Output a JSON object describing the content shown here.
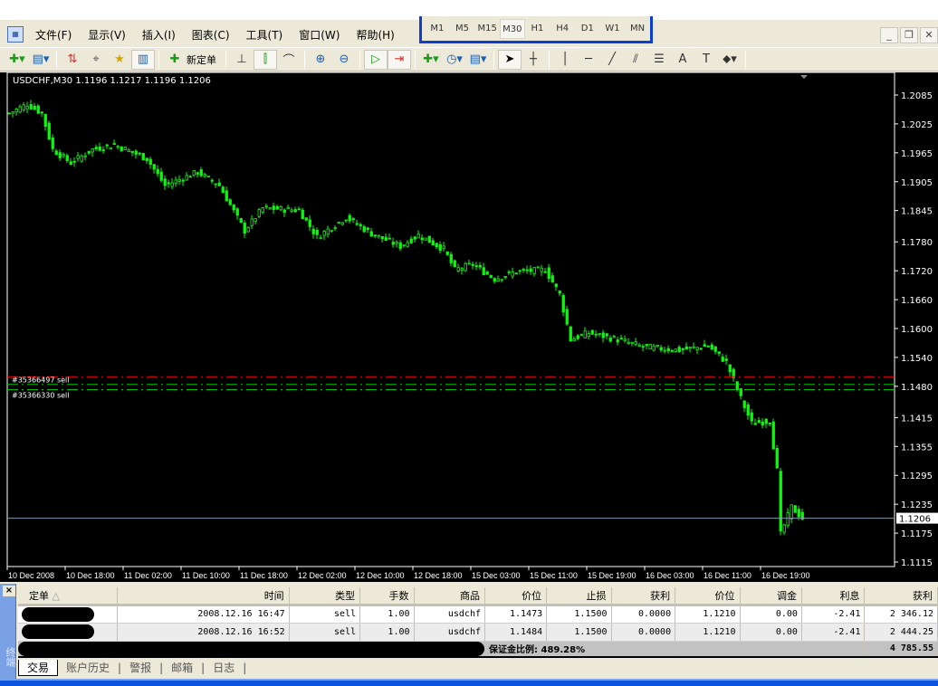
{
  "menu": {
    "app_icon": "metatrader-chart-icon",
    "items": [
      "文件(F)",
      "显示(V)",
      "插入(I)",
      "图表(C)",
      "工具(T)",
      "窗口(W)",
      "帮助(H)"
    ]
  },
  "timeframes": {
    "items": [
      "M1",
      "M5",
      "M15",
      "M30",
      "H1",
      "H4",
      "D1",
      "W1",
      "MN"
    ],
    "active": "M30"
  },
  "window_controls": [
    "_",
    "❐",
    "✕"
  ],
  "toolbar": {
    "new_order_label": "新定单"
  },
  "chart": {
    "header": "USDCHF,M30  1.1196 1.1217 1.1196 1.1206",
    "order_labels": [
      "#35366330 sell",
      "#35366497 sell"
    ],
    "current_price_label": "1.1206",
    "colors": {
      "bull": "#00ff00",
      "bear": "#00ff00",
      "background": "#000000",
      "stop_loss": "#ff0000",
      "order": "#00c000"
    }
  },
  "chart_data": {
    "type": "candlestick",
    "symbol": "USDCHF",
    "timeframe": "M30",
    "ylim": [
      1.1115,
      1.2085
    ],
    "y_ticks": [
      "1.2085",
      "1.2025",
      "1.1965",
      "1.1905",
      "1.1845",
      "1.1780",
      "1.1720",
      "1.1660",
      "1.1600",
      "1.1540",
      "1.1480",
      "1.1415",
      "1.1355",
      "1.1295",
      "1.1235",
      "1.1175",
      "1.1115"
    ],
    "x_ticks": [
      "10 Dec 2008",
      "10 Dec 18:00",
      "11 Dec 02:00",
      "11 Dec 10:00",
      "11 Dec 18:00",
      "12 Dec 02:00",
      "12 Dec 10:00",
      "12 Dec 18:00",
      "15 Dec 03:00",
      "15 Dec 11:00",
      "15 Dec 19:00",
      "16 Dec 03:00",
      "16 Dec 11:00",
      "16 Dec 19:00"
    ],
    "close_path": [
      [
        0,
        1.2047
      ],
      [
        5,
        1.2066
      ],
      [
        9,
        1.2047
      ],
      [
        12,
        1.1972
      ],
      [
        17,
        1.1944
      ],
      [
        23,
        1.1972
      ],
      [
        29,
        1.1982
      ],
      [
        38,
        1.1953
      ],
      [
        43,
        1.1897
      ],
      [
        52,
        1.1925
      ],
      [
        58,
        1.1897
      ],
      [
        65,
        1.1803
      ],
      [
        70,
        1.185
      ],
      [
        80,
        1.1846
      ],
      [
        85,
        1.179
      ],
      [
        93,
        1.1831
      ],
      [
        100,
        1.1797
      ],
      [
        108,
        1.1771
      ],
      [
        113,
        1.1794
      ],
      [
        120,
        1.1765
      ],
      [
        123,
        1.1722
      ],
      [
        128,
        1.1733
      ],
      [
        134,
        1.1703
      ],
      [
        140,
        1.1718
      ],
      [
        148,
        1.1722
      ],
      [
        152,
        1.1671
      ],
      [
        155,
        1.1577
      ],
      [
        160,
        1.1591
      ],
      [
        168,
        1.1577
      ],
      [
        175,
        1.1562
      ],
      [
        185,
        1.1555
      ],
      [
        193,
        1.1564
      ],
      [
        198,
        1.153
      ],
      [
        202,
        1.1455
      ],
      [
        205,
        1.1403
      ],
      [
        210,
        1.1408
      ],
      [
        212,
        1.1305
      ],
      [
        213,
        1.1173
      ],
      [
        216,
        1.1229
      ],
      [
        219,
        1.1206
      ]
    ],
    "orders": [
      {
        "price": 1.1473,
        "label": "#35366330 sell"
      },
      {
        "price": 1.1484,
        "label": "#35366497 sell"
      }
    ],
    "stop_loss": 1.15,
    "bid": 1.1206
  },
  "terminal": {
    "close_label": "×",
    "side_label": "终端",
    "columns": [
      "定单",
      "时间",
      "类型",
      "手数",
      "商品",
      "价位",
      "止损",
      "获利",
      "价位",
      "调金",
      "利息",
      "获利"
    ],
    "rows": [
      {
        "time": "2008.12.16 16:47",
        "type": "sell",
        "lots": "1.00",
        "symbol": "usdchf",
        "price": "1.1473",
        "sl": "1.1500",
        "tp": "0.0000",
        "cur": "1.1210",
        "commission": "0.00",
        "swap": "-2.41",
        "profit": "2 346.12"
      },
      {
        "time": "2008.12.16 16:52",
        "type": "sell",
        "lots": "1.00",
        "symbol": "usdchf",
        "price": "1.1484",
        "sl": "1.1500",
        "tp": "0.0000",
        "cur": "1.1210",
        "commission": "0.00",
        "swap": "-2.41",
        "profit": "2 444.25"
      }
    ],
    "summary": {
      "margin_level": "保证金比例: 489.28%",
      "total": "4 785.55"
    },
    "tabs": [
      "交易",
      "账户历史",
      "警报",
      "邮箱",
      "日志"
    ]
  }
}
